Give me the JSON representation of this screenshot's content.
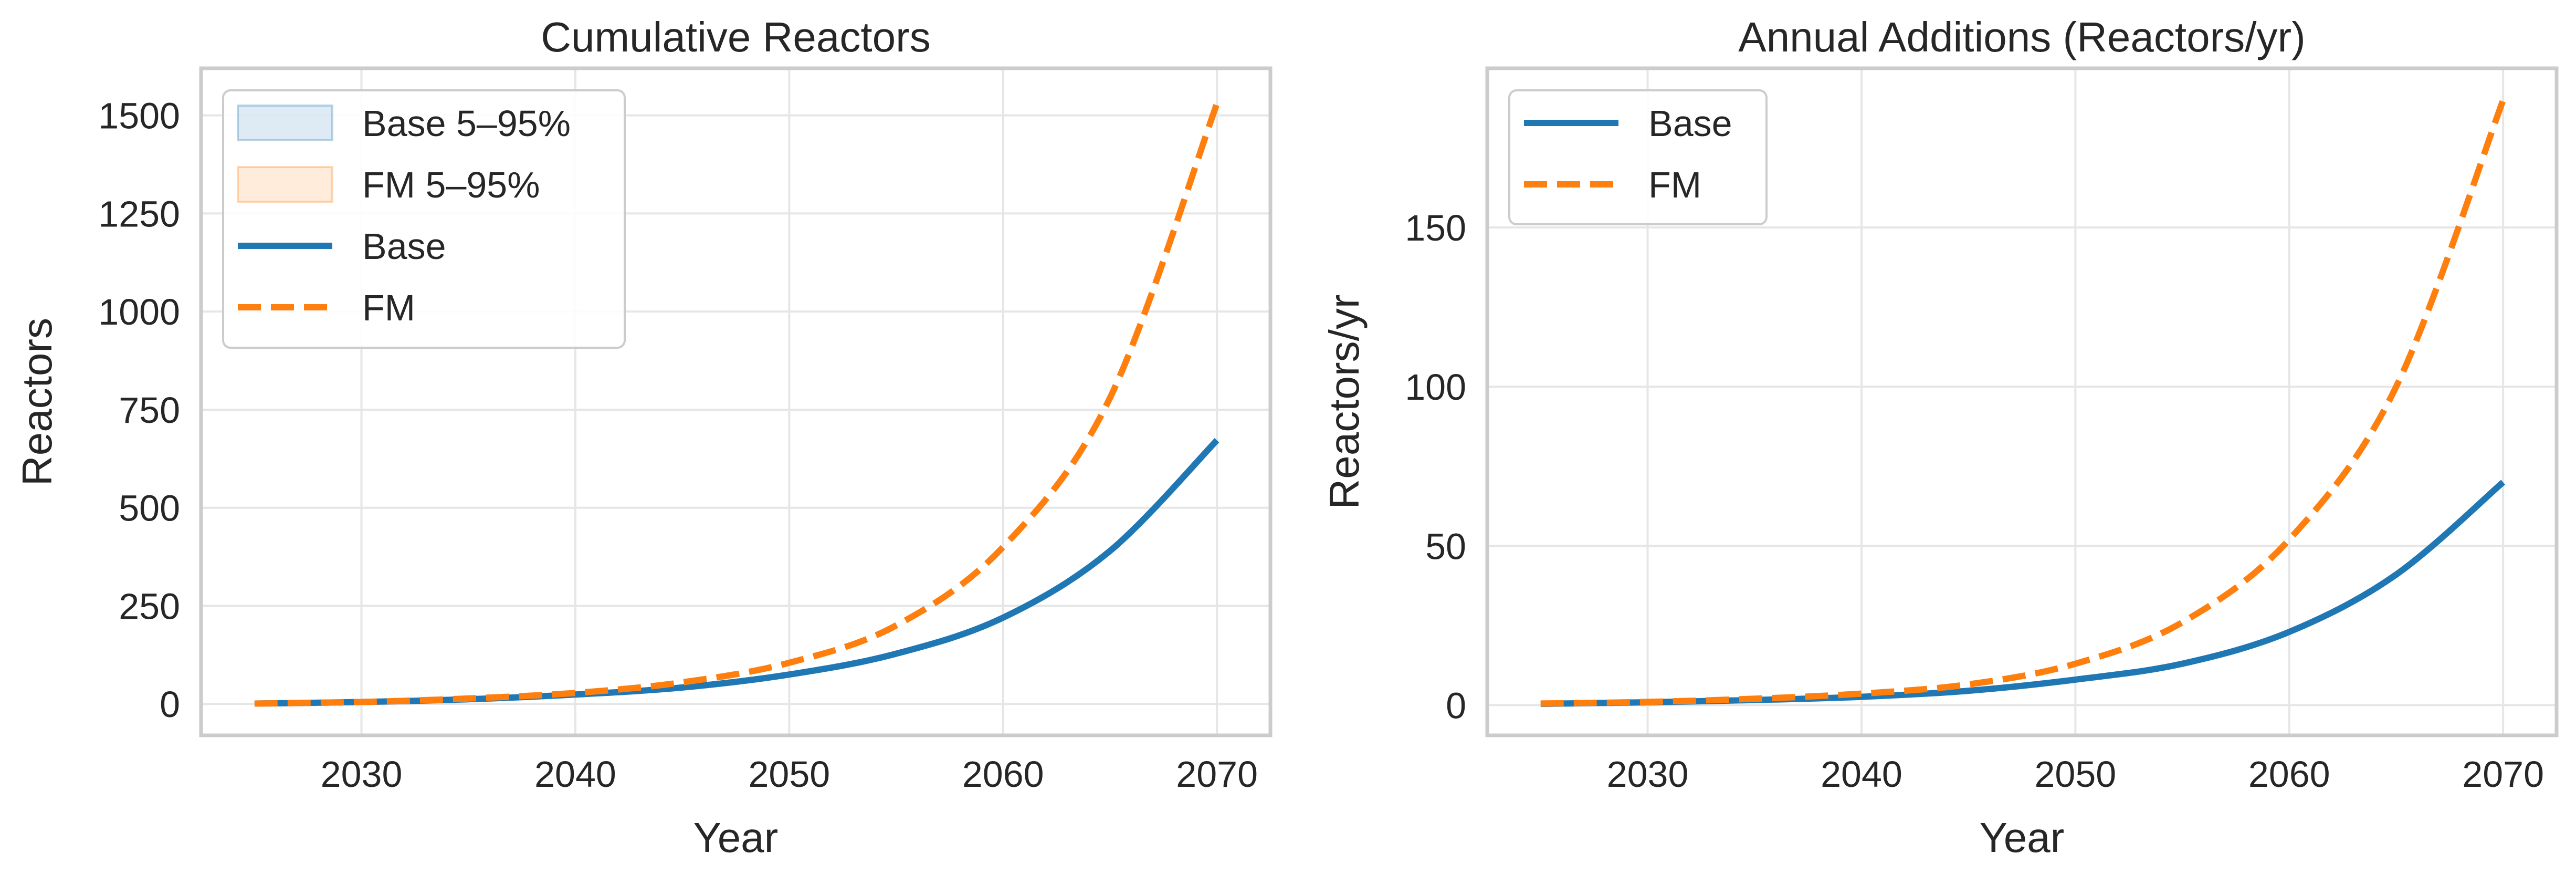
{
  "chart_data": [
    {
      "type": "line",
      "title": "Cumulative Reactors",
      "xlabel": "Year",
      "ylabel": "Reactors",
      "xlim": [
        2022.5,
        2072.5
      ],
      "ylim": [
        -80,
        1620
      ],
      "xticks": [
        2030,
        2040,
        2050,
        2060,
        2070
      ],
      "yticks": [
        0,
        250,
        500,
        750,
        1000,
        1250,
        1500
      ],
      "grid": true,
      "legend_position": "upper-left",
      "legend": [
        {
          "label": "Base 5–95%",
          "kind": "band",
          "color": "#1f77b4"
        },
        {
          "label": "FM 5–95%",
          "kind": "band",
          "color": "#ff7f0e"
        },
        {
          "label": "Base",
          "kind": "line",
          "style": "solid",
          "color": "#1f77b4"
        },
        {
          "label": "FM",
          "kind": "line",
          "style": "dashed",
          "color": "#ff7f0e"
        }
      ],
      "x": [
        2025,
        2030,
        2035,
        2040,
        2045,
        2050,
        2055,
        2060,
        2065,
        2070
      ],
      "series": [
        {
          "name": "Base",
          "color": "#1f77b4",
          "style": "solid",
          "values": [
            1,
            5,
            12,
            24,
            42,
            75,
            128,
            220,
            390,
            672
          ]
        },
        {
          "name": "FM",
          "color": "#ff7f0e",
          "style": "dashed",
          "values": [
            1,
            5,
            14,
            28,
            55,
            105,
            200,
            400,
            780,
            1530
          ]
        }
      ]
    },
    {
      "type": "line",
      "title": "Annual Additions (Reactors/yr)",
      "xlabel": "Year",
      "ylabel": "Reactors/yr",
      "xlim": [
        2022.5,
        2072.5
      ],
      "ylim": [
        -9.5,
        200
      ],
      "xticks": [
        2030,
        2040,
        2050,
        2060,
        2070
      ],
      "yticks": [
        0,
        50,
        100,
        150
      ],
      "grid": true,
      "legend_position": "upper-left",
      "legend": [
        {
          "label": "Base",
          "kind": "line",
          "style": "solid",
          "color": "#1f77b4"
        },
        {
          "label": "FM",
          "kind": "line",
          "style": "dashed",
          "color": "#ff7f0e"
        }
      ],
      "x": [
        2025,
        2030,
        2035,
        2040,
        2045,
        2050,
        2055,
        2060,
        2065,
        2070
      ],
      "series": [
        {
          "name": "Base",
          "color": "#1f77b4",
          "style": "solid",
          "values": [
            0.4,
            0.9,
            1.6,
            2.6,
            4.5,
            8,
            13,
            23,
            41,
            70
          ]
        },
        {
          "name": "FM",
          "color": "#ff7f0e",
          "style": "dashed",
          "values": [
            0.5,
            1.0,
            2.0,
            3.6,
            6.5,
            13,
            26,
            52,
            100,
            190
          ]
        }
      ]
    }
  ]
}
